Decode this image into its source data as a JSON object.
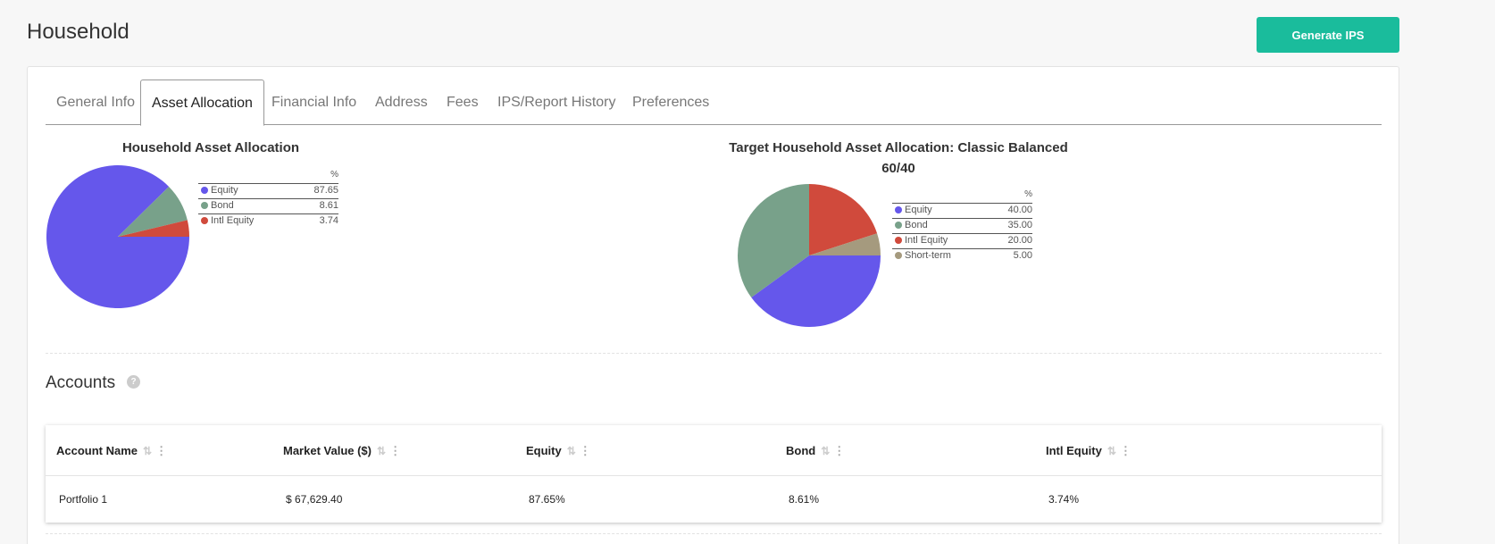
{
  "page": {
    "title": "Household",
    "generate_label": "Generate IPS"
  },
  "tabs": [
    {
      "label": "General Info",
      "active": false
    },
    {
      "label": "Asset Allocation",
      "active": true
    },
    {
      "label": "Financial Info",
      "active": false
    },
    {
      "label": "Address",
      "active": false
    },
    {
      "label": "Fees",
      "active": false
    },
    {
      "label": "IPS/Report History",
      "active": false
    },
    {
      "label": "Preferences",
      "active": false
    }
  ],
  "colors": {
    "accent": "#1abc9c",
    "Equity": "#6557eb",
    "Bond": "#78a18a",
    "Intl Equity": "#d04a3c",
    "Short-term": "#a59a7e"
  },
  "charts": {
    "household": {
      "title": "Household Asset Allocation",
      "pct_header": "%",
      "rows": [
        {
          "label": "Equity",
          "value": "87.65"
        },
        {
          "label": "Bond",
          "value": "8.61"
        },
        {
          "label": "Intl Equity",
          "value": "3.74"
        }
      ]
    },
    "target": {
      "title_line1": "Target Household Asset Allocation: Classic Balanced",
      "title_line2": "60/40",
      "pct_header": "%",
      "rows": [
        {
          "label": "Equity",
          "value": "40.00"
        },
        {
          "label": "Bond",
          "value": "35.00"
        },
        {
          "label": "Intl Equity",
          "value": "20.00"
        },
        {
          "label": "Short-term",
          "value": "5.00"
        }
      ]
    }
  },
  "chart_data": [
    {
      "type": "pie",
      "title": "Household Asset Allocation",
      "categories": [
        "Equity",
        "Bond",
        "Intl Equity"
      ],
      "values": [
        87.65,
        8.61,
        3.74
      ]
    },
    {
      "type": "pie",
      "title": "Target Household Asset Allocation: Classic Balanced 60/40",
      "categories": [
        "Equity",
        "Bond",
        "Intl Equity",
        "Short-term"
      ],
      "values": [
        40.0,
        35.0,
        20.0,
        5.0
      ]
    }
  ],
  "accounts": {
    "title": "Accounts",
    "help_glyph": "?",
    "columns": [
      "Account Name",
      "Market Value ($)",
      "Equity",
      "Bond",
      "Intl Equity"
    ],
    "rows": [
      [
        "Portfolio 1",
        "$ 67,629.40",
        "87.65%",
        "8.61%",
        "3.74%"
      ]
    ]
  }
}
